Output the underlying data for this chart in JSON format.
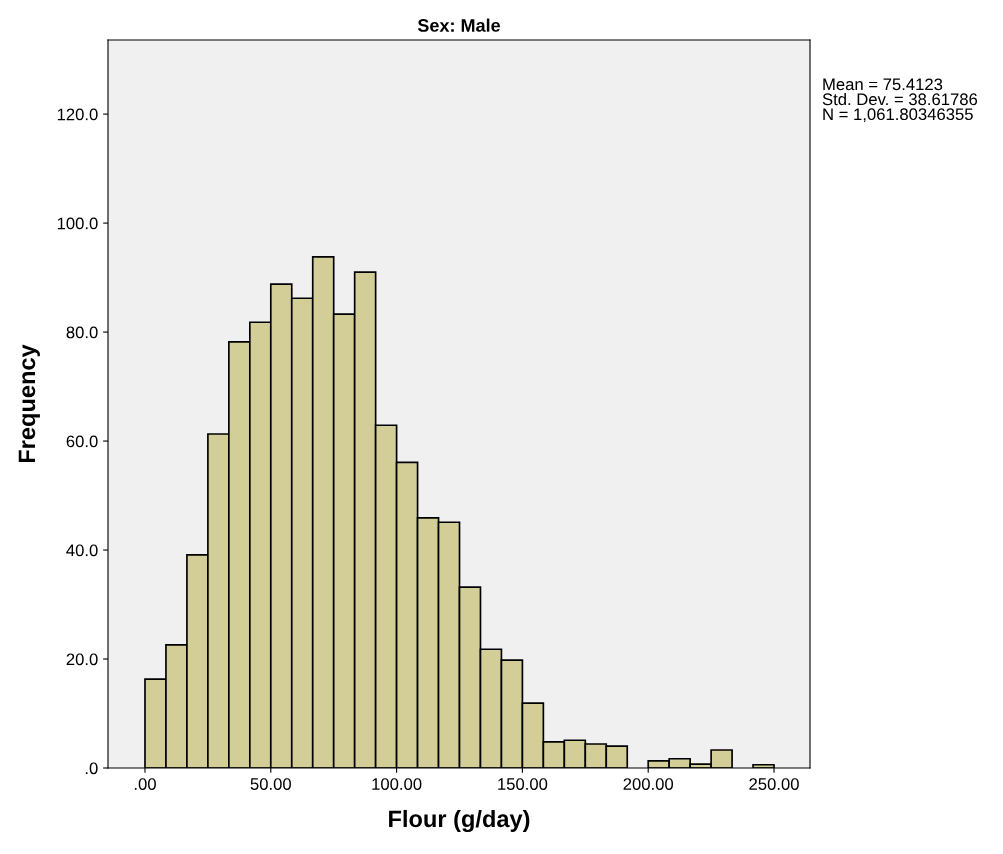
{
  "chart_data": {
    "type": "histogram",
    "title": "Sex: Male",
    "xlabel": "Flour (g/day)",
    "ylabel": "Frequency",
    "bins": [
      0,
      8.333,
      16.667,
      25,
      33.333,
      41.667,
      50,
      58.333,
      66.667,
      75,
      83.333,
      91.667,
      100,
      108.333,
      116.667,
      125,
      133.333,
      141.667,
      150,
      158.333,
      166.667,
      175,
      183.333,
      191.667,
      200,
      208.333,
      216.667,
      225,
      233.333,
      241.667,
      250
    ],
    "values": [
      16.3,
      22.6,
      39.1,
      61.3,
      78.2,
      81.8,
      88.8,
      86.2,
      93.8,
      83.3,
      91.0,
      62.9,
      56.1,
      45.9,
      45.1,
      33.2,
      21.8,
      19.8,
      11.9,
      4.8,
      5.1,
      4.4,
      4.0,
      0,
      1.3,
      1.7,
      0.7,
      3.3,
      0,
      0.6
    ],
    "color": "#d3ce97",
    "xlim": [
      -14.7,
      264.3
    ],
    "ylim": [
      0,
      133.6
    ],
    "xticks": [
      {
        "value": 0,
        "label": ".00"
      },
      {
        "value": 50,
        "label": "50.00"
      },
      {
        "value": 100,
        "label": "100.00"
      },
      {
        "value": 150,
        "label": "150.00"
      },
      {
        "value": 200,
        "label": "200.00"
      },
      {
        "value": 250,
        "label": "250.00"
      }
    ],
    "yticks": [
      {
        "value": 0,
        "label": ".0"
      },
      {
        "value": 20,
        "label": "20.0"
      },
      {
        "value": 40,
        "label": "40.0"
      },
      {
        "value": 60,
        "label": "60.0"
      },
      {
        "value": 80,
        "label": "80.0"
      },
      {
        "value": 100,
        "label": "100.0"
      },
      {
        "value": 120,
        "label": "120.0"
      }
    ],
    "grid": false,
    "annotations": [
      "Mean = 75.4123\nStd. Dev. = 38.61786\nN = 1,061.80346355"
    ]
  }
}
